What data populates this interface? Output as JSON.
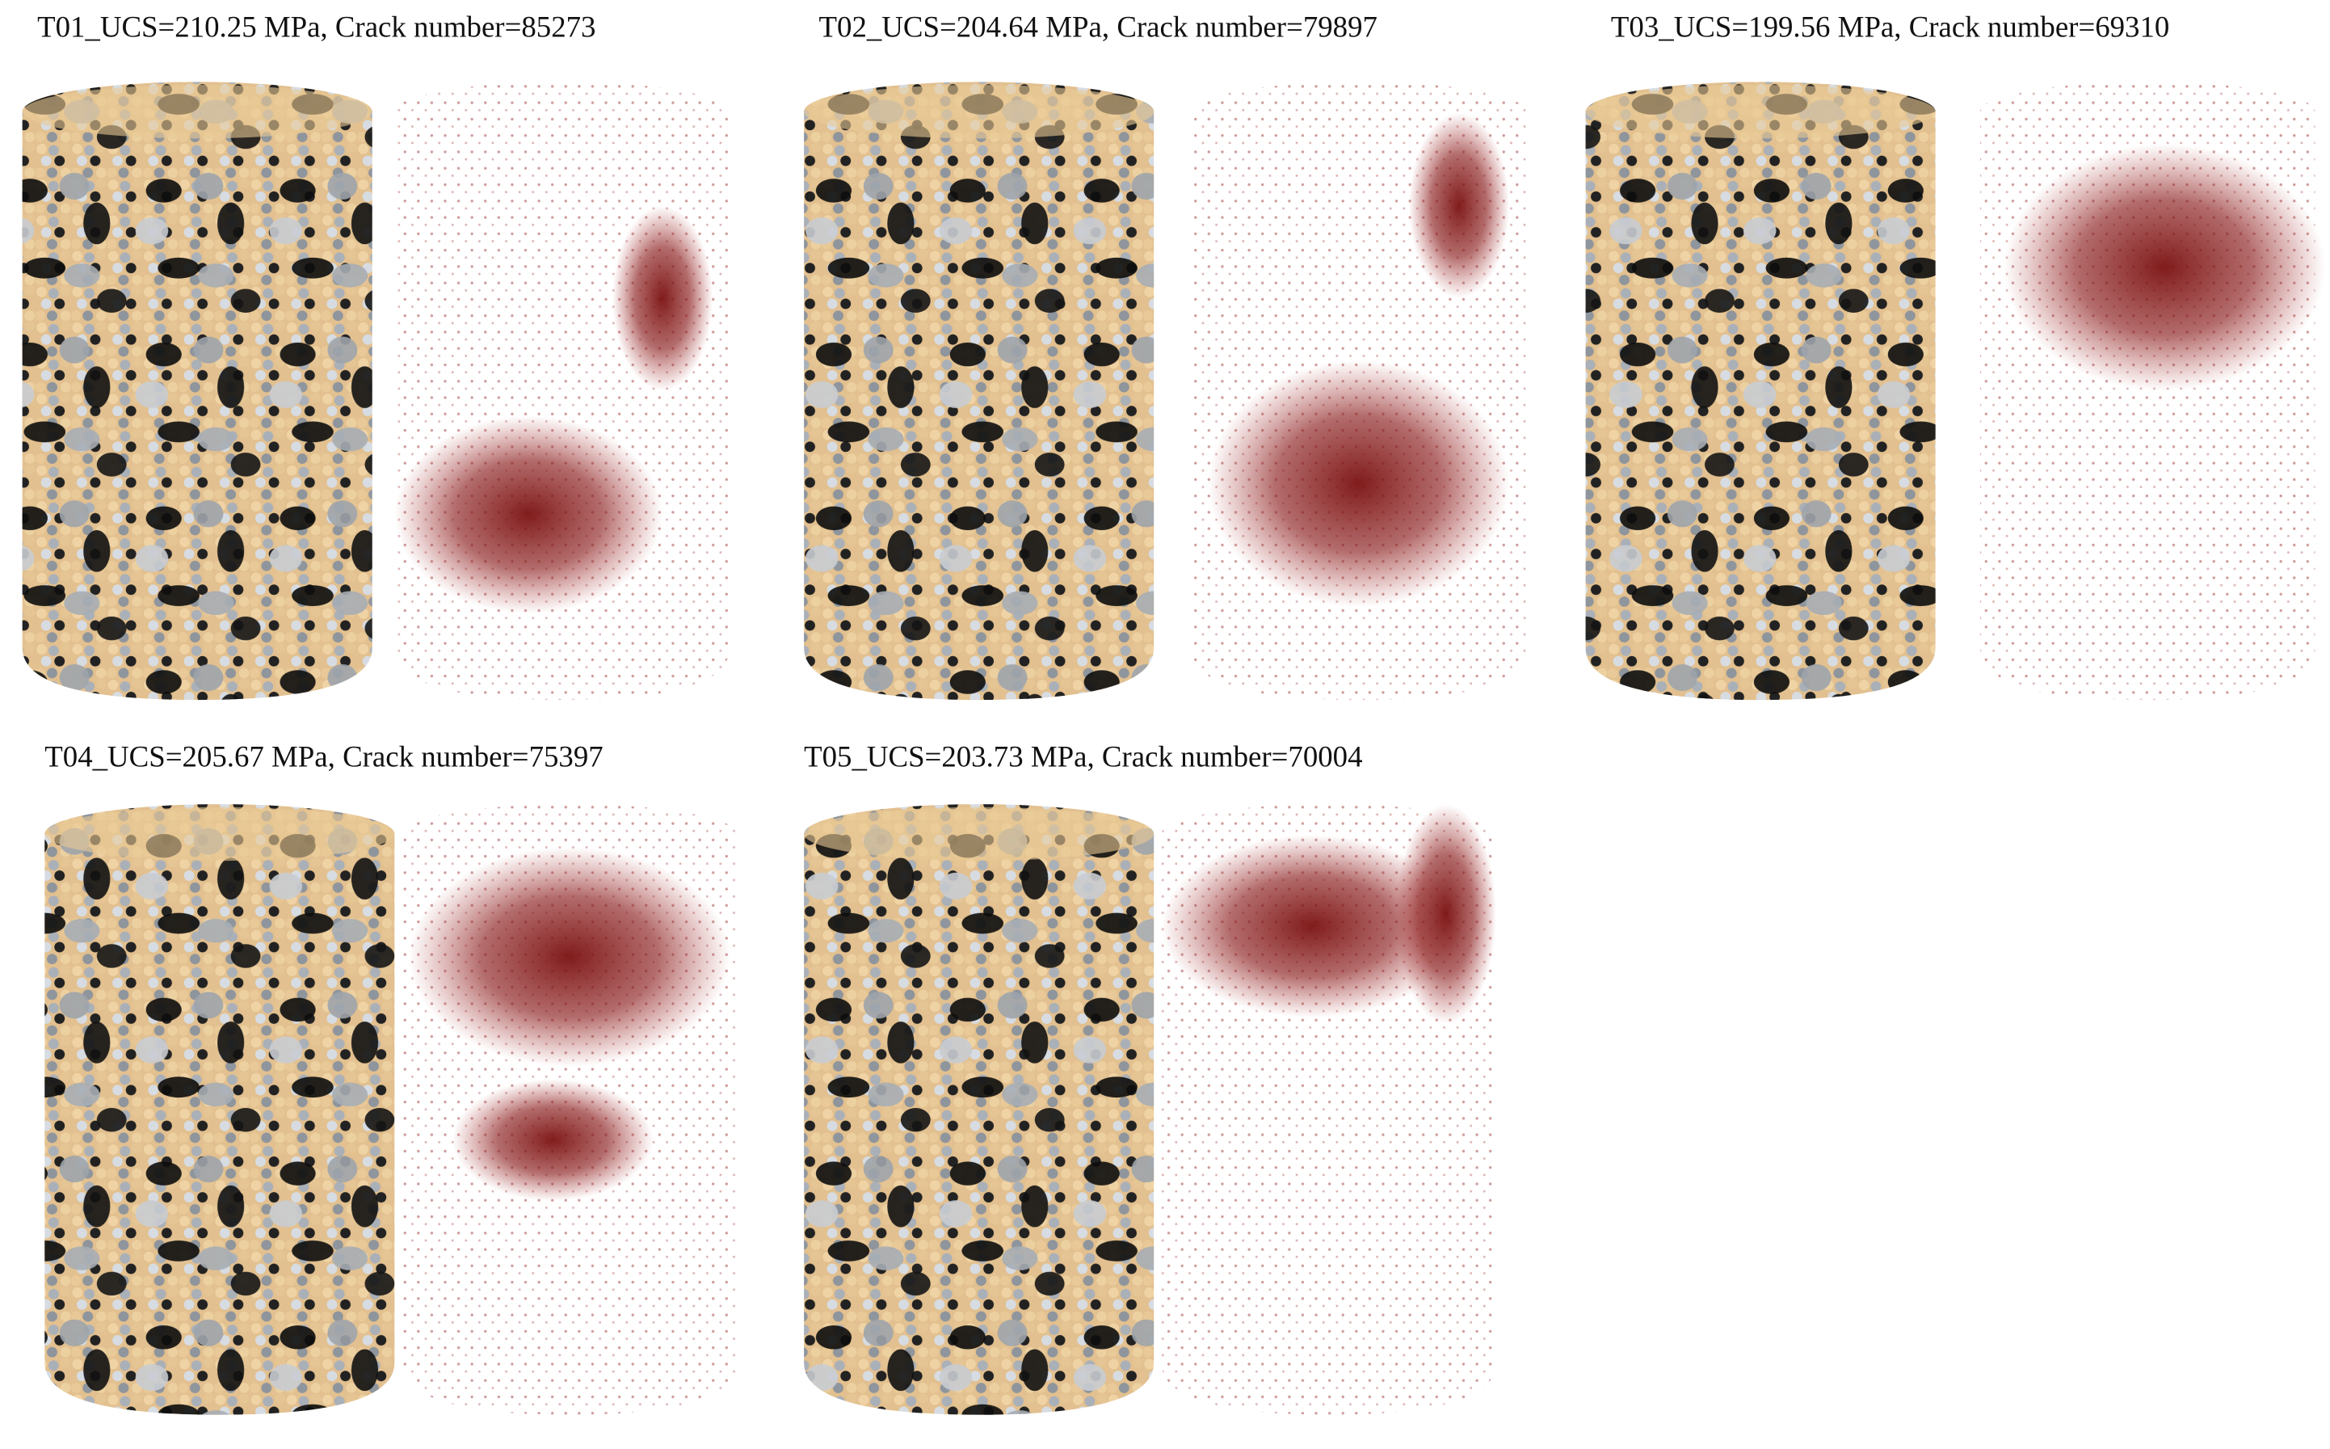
{
  "panels": [
    {
      "title": "T01_UCS=210.25 MPa, Crack number=85273"
    },
    {
      "title": "T02_UCS=204.64 MPa, Crack number=79897"
    },
    {
      "title": "T03_UCS=199.56 MPa, Crack number=69310"
    },
    {
      "title": "T04_UCS=205.67 MPa, Crack number=75397"
    },
    {
      "title": "T05_UCS=203.73 MPa, Crack number=70004"
    }
  ]
}
